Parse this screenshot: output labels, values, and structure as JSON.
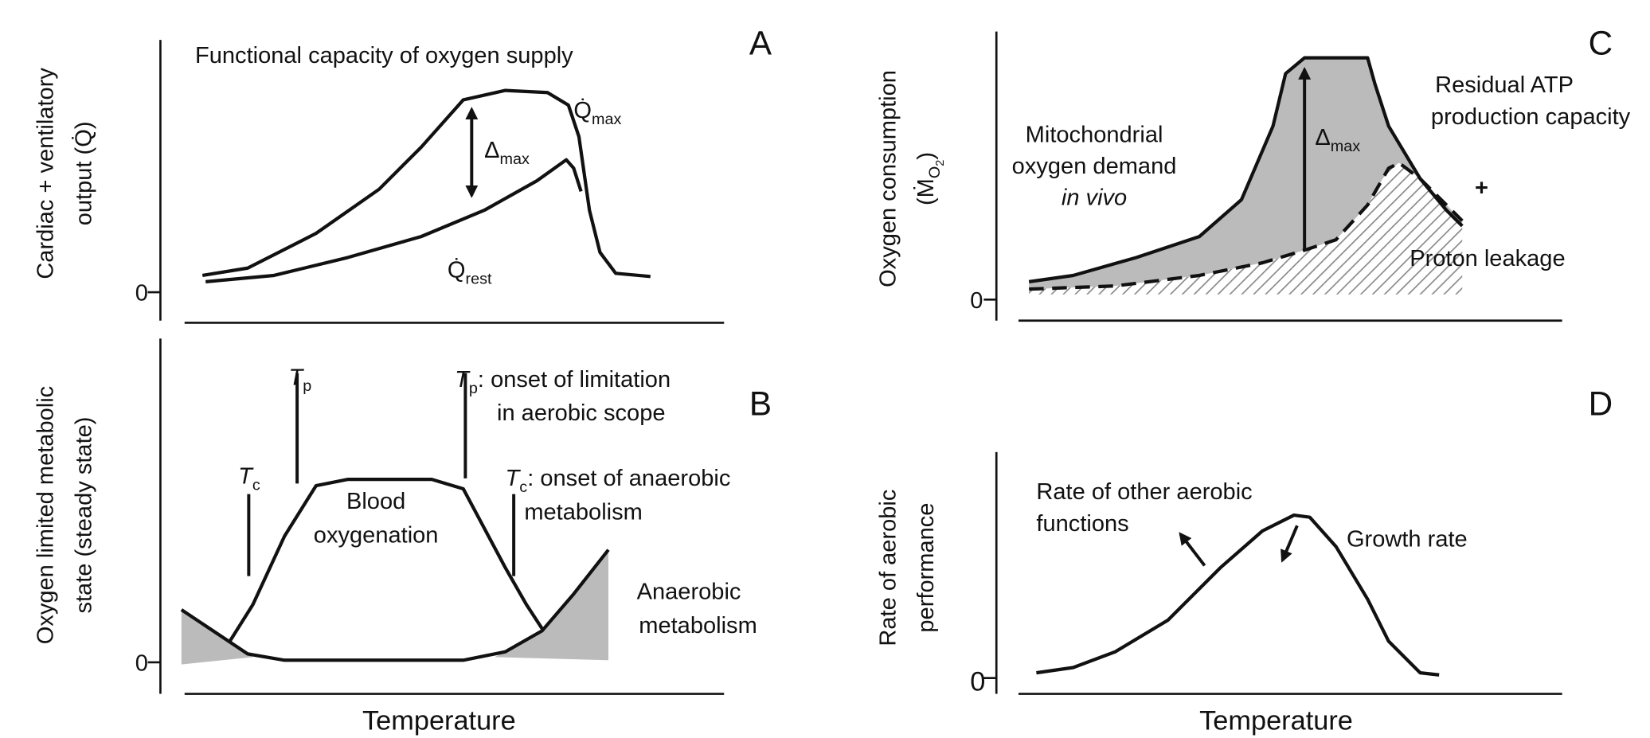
{
  "panels": {
    "A": {
      "letter": "A",
      "y_label": [
        "Cardiac + ventilatory",
        "output (Q̇)"
      ],
      "zero": "0",
      "title": "Functional capacity of oxygen supply",
      "delta": {
        "symbol": "Δ",
        "sub": "max"
      },
      "q_max": {
        "symbol": "Q̇",
        "sub": "max"
      },
      "q_rest": {
        "symbol": "Q̇",
        "sub": "rest"
      }
    },
    "B": {
      "letter": "B",
      "y_label": [
        "Oxygen limited metabolic",
        "state (steady state)"
      ],
      "zero": "0",
      "x_label": "Temperature",
      "tc_left": {
        "symbol": "T",
        "sub": "c"
      },
      "tp_left": {
        "symbol": "T",
        "sub": "p"
      },
      "tp_note": {
        "symbol": "T",
        "sub": "p",
        "text": ": onset of limitation",
        "line2": "in aerobic scope"
      },
      "tc_note": {
        "symbol": "T",
        "sub": "c",
        "text": ": onset of anaerobic",
        "line2": "metabolism"
      },
      "blood": [
        "Blood",
        "oxygenation"
      ],
      "anaerobic": [
        "Anaerobic",
        "metabolism"
      ]
    },
    "C": {
      "letter": "C",
      "y_label": [
        "Oxygen consumption",
        "(Ṁ",
        "O",
        "2",
        ")"
      ],
      "zero": "0",
      "delta": {
        "symbol": "Δ",
        "sub": "max"
      },
      "demand": [
        "Mitochondrial",
        "oxygen demand",
        "in vivo"
      ],
      "residual": [
        "Residual ATP",
        "production capacity"
      ],
      "plus": "+",
      "leak": "Proton leakage"
    },
    "D": {
      "letter": "D",
      "y_label": [
        "Rate of aerobic",
        "performance"
      ],
      "zero": "0",
      "x_label": "Temperature",
      "other": [
        "Rate of other aerobic",
        "functions"
      ],
      "growth": "Growth rate"
    }
  }
}
